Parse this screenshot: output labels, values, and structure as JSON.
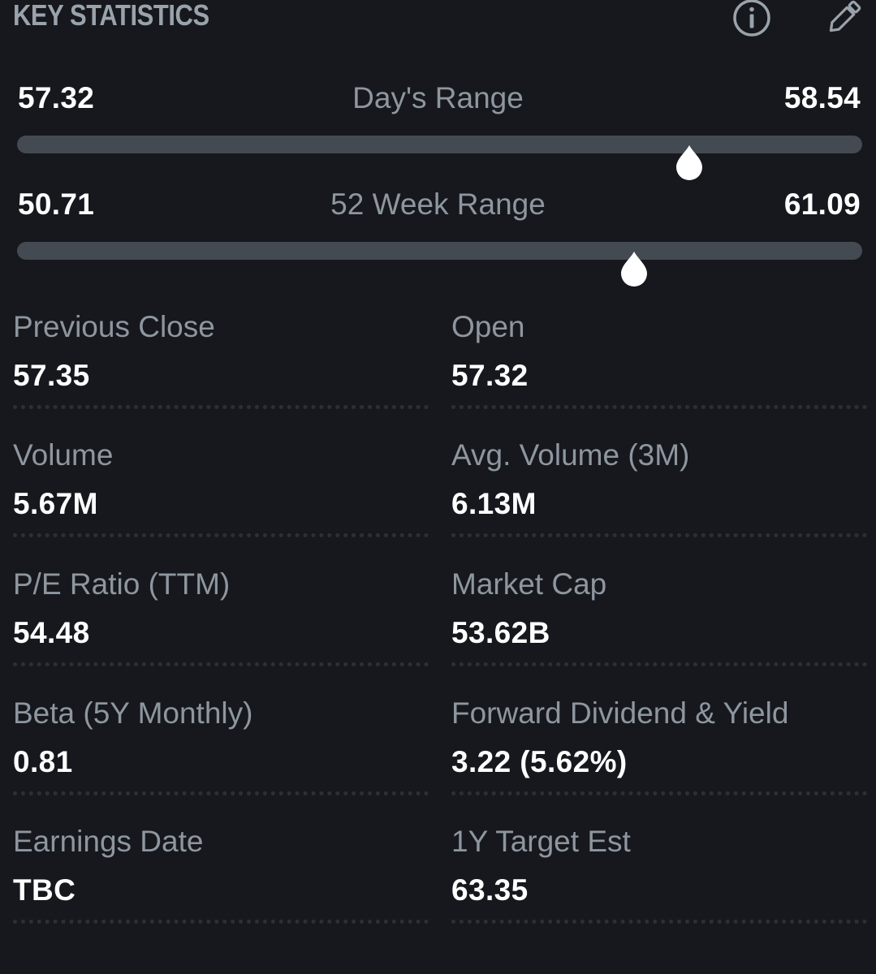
{
  "header": {
    "title": "KEY STATISTICS",
    "info_icon": "info-circle-icon",
    "edit_icon": "pencil-edit-icon"
  },
  "ranges": [
    {
      "label": "Day's Range",
      "low": "57.32",
      "high": "58.54",
      "marker_fraction": 0.795
    },
    {
      "label": "52 Week Range",
      "low": "50.71",
      "high": "61.09",
      "marker_fraction": 0.73
    }
  ],
  "stats": [
    {
      "label": "Previous Close",
      "value": "57.35"
    },
    {
      "label": "Open",
      "value": "57.32"
    },
    {
      "label": "Volume",
      "value": "5.67M"
    },
    {
      "label": "Avg. Volume (3M)",
      "value": "6.13M"
    },
    {
      "label": "P/E Ratio (TTM)",
      "value": "54.48"
    },
    {
      "label": "Market Cap",
      "value": "53.62B"
    },
    {
      "label": "Beta (5Y Monthly)",
      "value": "0.81"
    },
    {
      "label": "Forward Dividend & Yield",
      "value": "3.22 (5.62%)"
    },
    {
      "label": "Earnings Date",
      "value": "TBC"
    },
    {
      "label": "1Y Target Est",
      "value": "63.35"
    }
  ],
  "colors": {
    "background": "#16181d",
    "title": "#9aa2ab",
    "label": "#8e969f",
    "value": "#ffffff",
    "track": "#434a52",
    "marker": "#ffffff"
  }
}
